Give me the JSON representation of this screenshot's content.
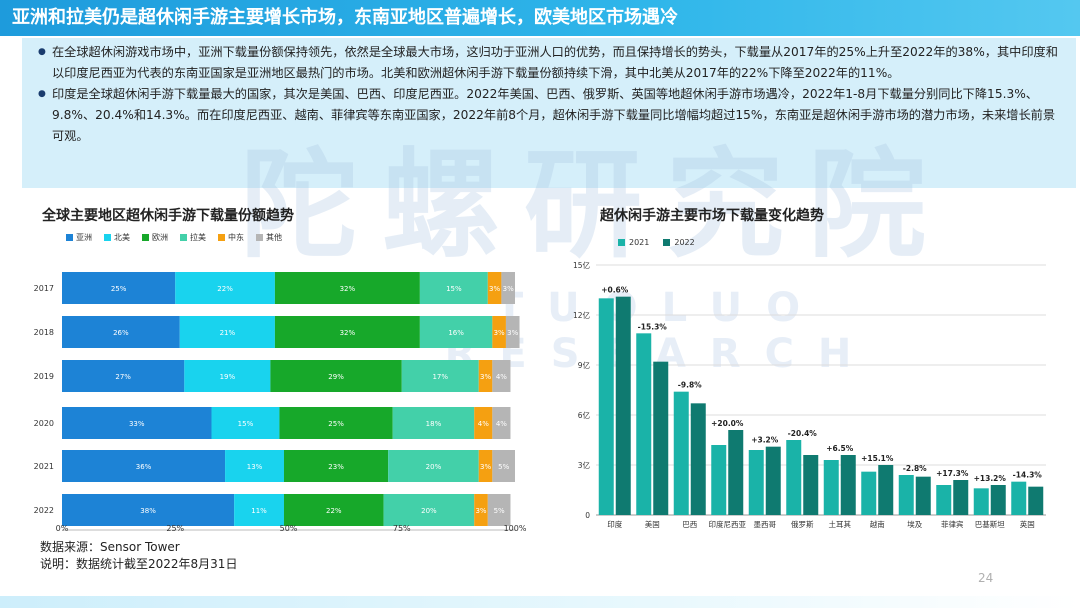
{
  "header": {
    "title": "亚洲和拉美仍是超休闲手游主要增长市场，东南亚地区普遍增长，欧美地区市场遇冷"
  },
  "summary": {
    "bullet1": "在全球超休闲游戏市场中，亚洲下载量份额保持领先，依然是全球最大市场，这归功于亚洲人口的优势，而且保持增长的势头，下载量从2017年的25%上升至2022年的38%，其中印度和以印度尼西亚为代表的东南亚国家是亚洲地区最热门的市场。北美和欧洲超休闲手游下载量份额持续下滑，其中北美从2017年的22%下降至2022年的11%。",
    "bullet2": "印度是全球超休闲手游下载量最大的国家，其次是美国、巴西、印度尼西亚。2022年美国、巴西、俄罗斯、英国等地超休闲手游市场遇冷，2022年1-8月下载量分别同比下降15.3%、9.8%、20.4%和14.3%。而在印度尼西亚、越南、菲律宾等东南亚国家，2022年前8个月，超休闲手游下载量同比增幅均超过15%，东南亚是超休闲手游市场的潜力市场，未来增长前景可观。"
  },
  "watermark": {
    "cn": "陀螺研究院",
    "en": "TUOLUO RESEARCH"
  },
  "left_chart": {
    "title": "全球主要地区超休闲手游下载量份额趋势"
  },
  "right_chart": {
    "title": "超休闲手游主要市场下载量变化趋势"
  },
  "source": {
    "line1": "数据来源：Sensor Tower",
    "line2": "说明：数据统计截至2022年8月31日"
  },
  "page_number": "24",
  "colors": {
    "header": "#1e9bdc",
    "summary_bg": "#d5effa",
    "bar2021": "#1ab3a8",
    "bar2022": "#0f7a70"
  },
  "chart_data": [
    {
      "type": "bar",
      "orientation": "horizontal",
      "stacked": true,
      "title": "全球主要地区超休闲手游下载量份额趋势",
      "categories": [
        "2017",
        "2018",
        "2019",
        "2020",
        "2021",
        "2022"
      ],
      "series": [
        {
          "name": "亚洲",
          "color": "#1d83d6",
          "values": [
            25,
            26,
            27,
            33,
            36,
            38
          ]
        },
        {
          "name": "北美",
          "color": "#19d3ee",
          "values": [
            22,
            21,
            19,
            15,
            13,
            11
          ]
        },
        {
          "name": "欧洲",
          "color": "#17a82a",
          "values": [
            32,
            32,
            29,
            25,
            23,
            22
          ]
        },
        {
          "name": "拉美",
          "color": "#43d0a9",
          "values": [
            15,
            16,
            17,
            18,
            20,
            20
          ]
        },
        {
          "name": "中东",
          "color": "#f5a011",
          "values": [
            3,
            3,
            3,
            4,
            3,
            3
          ]
        },
        {
          "name": "其他",
          "color": "#b5b5b5",
          "values": [
            3,
            3,
            4,
            4,
            5,
            5
          ]
        }
      ],
      "xlim": [
        0,
        100
      ],
      "xticks": [
        "0%",
        "25%",
        "50%",
        "75%",
        "100%"
      ],
      "legend": "top-left"
    },
    {
      "type": "bar",
      "title": "超休闲手游主要市场下载量变化趋势",
      "categories": [
        "印度",
        "美国",
        "巴西",
        "印度尼西亚",
        "墨西哥",
        "俄罗斯",
        "土耳其",
        "越南",
        "埃及",
        "菲律宾",
        "巴基斯坦",
        "英国"
      ],
      "series": [
        {
          "name": "2021",
          "color": "#1ab3a8",
          "values": [
            13.0,
            10.9,
            7.4,
            4.2,
            3.9,
            4.5,
            3.3,
            2.6,
            2.4,
            1.8,
            1.6,
            2.0
          ]
        },
        {
          "name": "2022",
          "color": "#0f7a70",
          "values": [
            13.1,
            9.2,
            6.7,
            5.1,
            4.1,
            3.6,
            3.6,
            3.0,
            2.3,
            2.1,
            1.8,
            1.7
          ]
        }
      ],
      "annotations": [
        "+0.6%",
        "-15.3%",
        "-9.8%",
        "+20.0%",
        "+3.2%",
        "-20.4%",
        "+6.5%",
        "+15.1%",
        "-2.8%",
        "+17.3%",
        "+13.2%",
        "-14.3%"
      ],
      "ylim": [
        0,
        15
      ],
      "yticks": [
        "0",
        "3亿",
        "6亿",
        "9亿",
        "12亿",
        "15亿"
      ],
      "grid": true,
      "legend": "top-left"
    }
  ]
}
